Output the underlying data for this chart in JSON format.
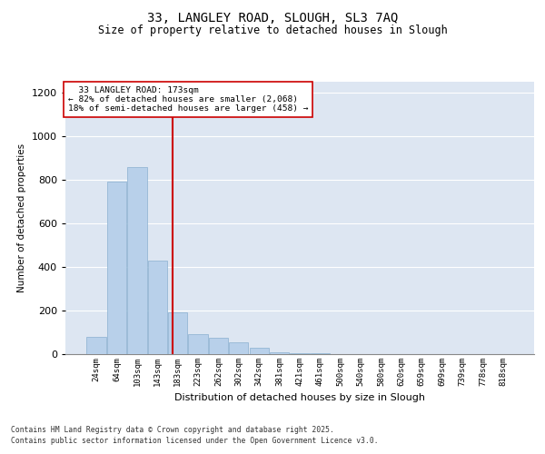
{
  "title_line1": "33, LANGLEY ROAD, SLOUGH, SL3 7AQ",
  "title_line2": "Size of property relative to detached houses in Slough",
  "xlabel": "Distribution of detached houses by size in Slough",
  "ylabel": "Number of detached properties",
  "annotation_line1": "  33 LANGLEY ROAD: 173sqm  ",
  "annotation_line2": "← 82% of detached houses are smaller (2,068)",
  "annotation_line3": "18% of semi-detached houses are larger (458) →",
  "bar_labels": [
    "24sqm",
    "64sqm",
    "103sqm",
    "143sqm",
    "183sqm",
    "223sqm",
    "262sqm",
    "302sqm",
    "342sqm",
    "381sqm",
    "421sqm",
    "461sqm",
    "500sqm",
    "540sqm",
    "580sqm",
    "620sqm",
    "659sqm",
    "699sqm",
    "739sqm",
    "778sqm",
    "818sqm"
  ],
  "bar_values": [
    80,
    790,
    860,
    430,
    190,
    90,
    75,
    55,
    30,
    10,
    5,
    3,
    2,
    0,
    0,
    2,
    0,
    2,
    0,
    2,
    0
  ],
  "bar_color": "#b8d0ea",
  "bar_edge_color": "#8ab0d0",
  "bg_color": "#dde6f2",
  "grid_color": "#ffffff",
  "ylim": [
    0,
    1250
  ],
  "yticks": [
    0,
    200,
    400,
    600,
    800,
    1000,
    1200
  ],
  "footer_line1": "Contains HM Land Registry data © Crown copyright and database right 2025.",
  "footer_line2": "Contains public sector information licensed under the Open Government Licence v3.0."
}
